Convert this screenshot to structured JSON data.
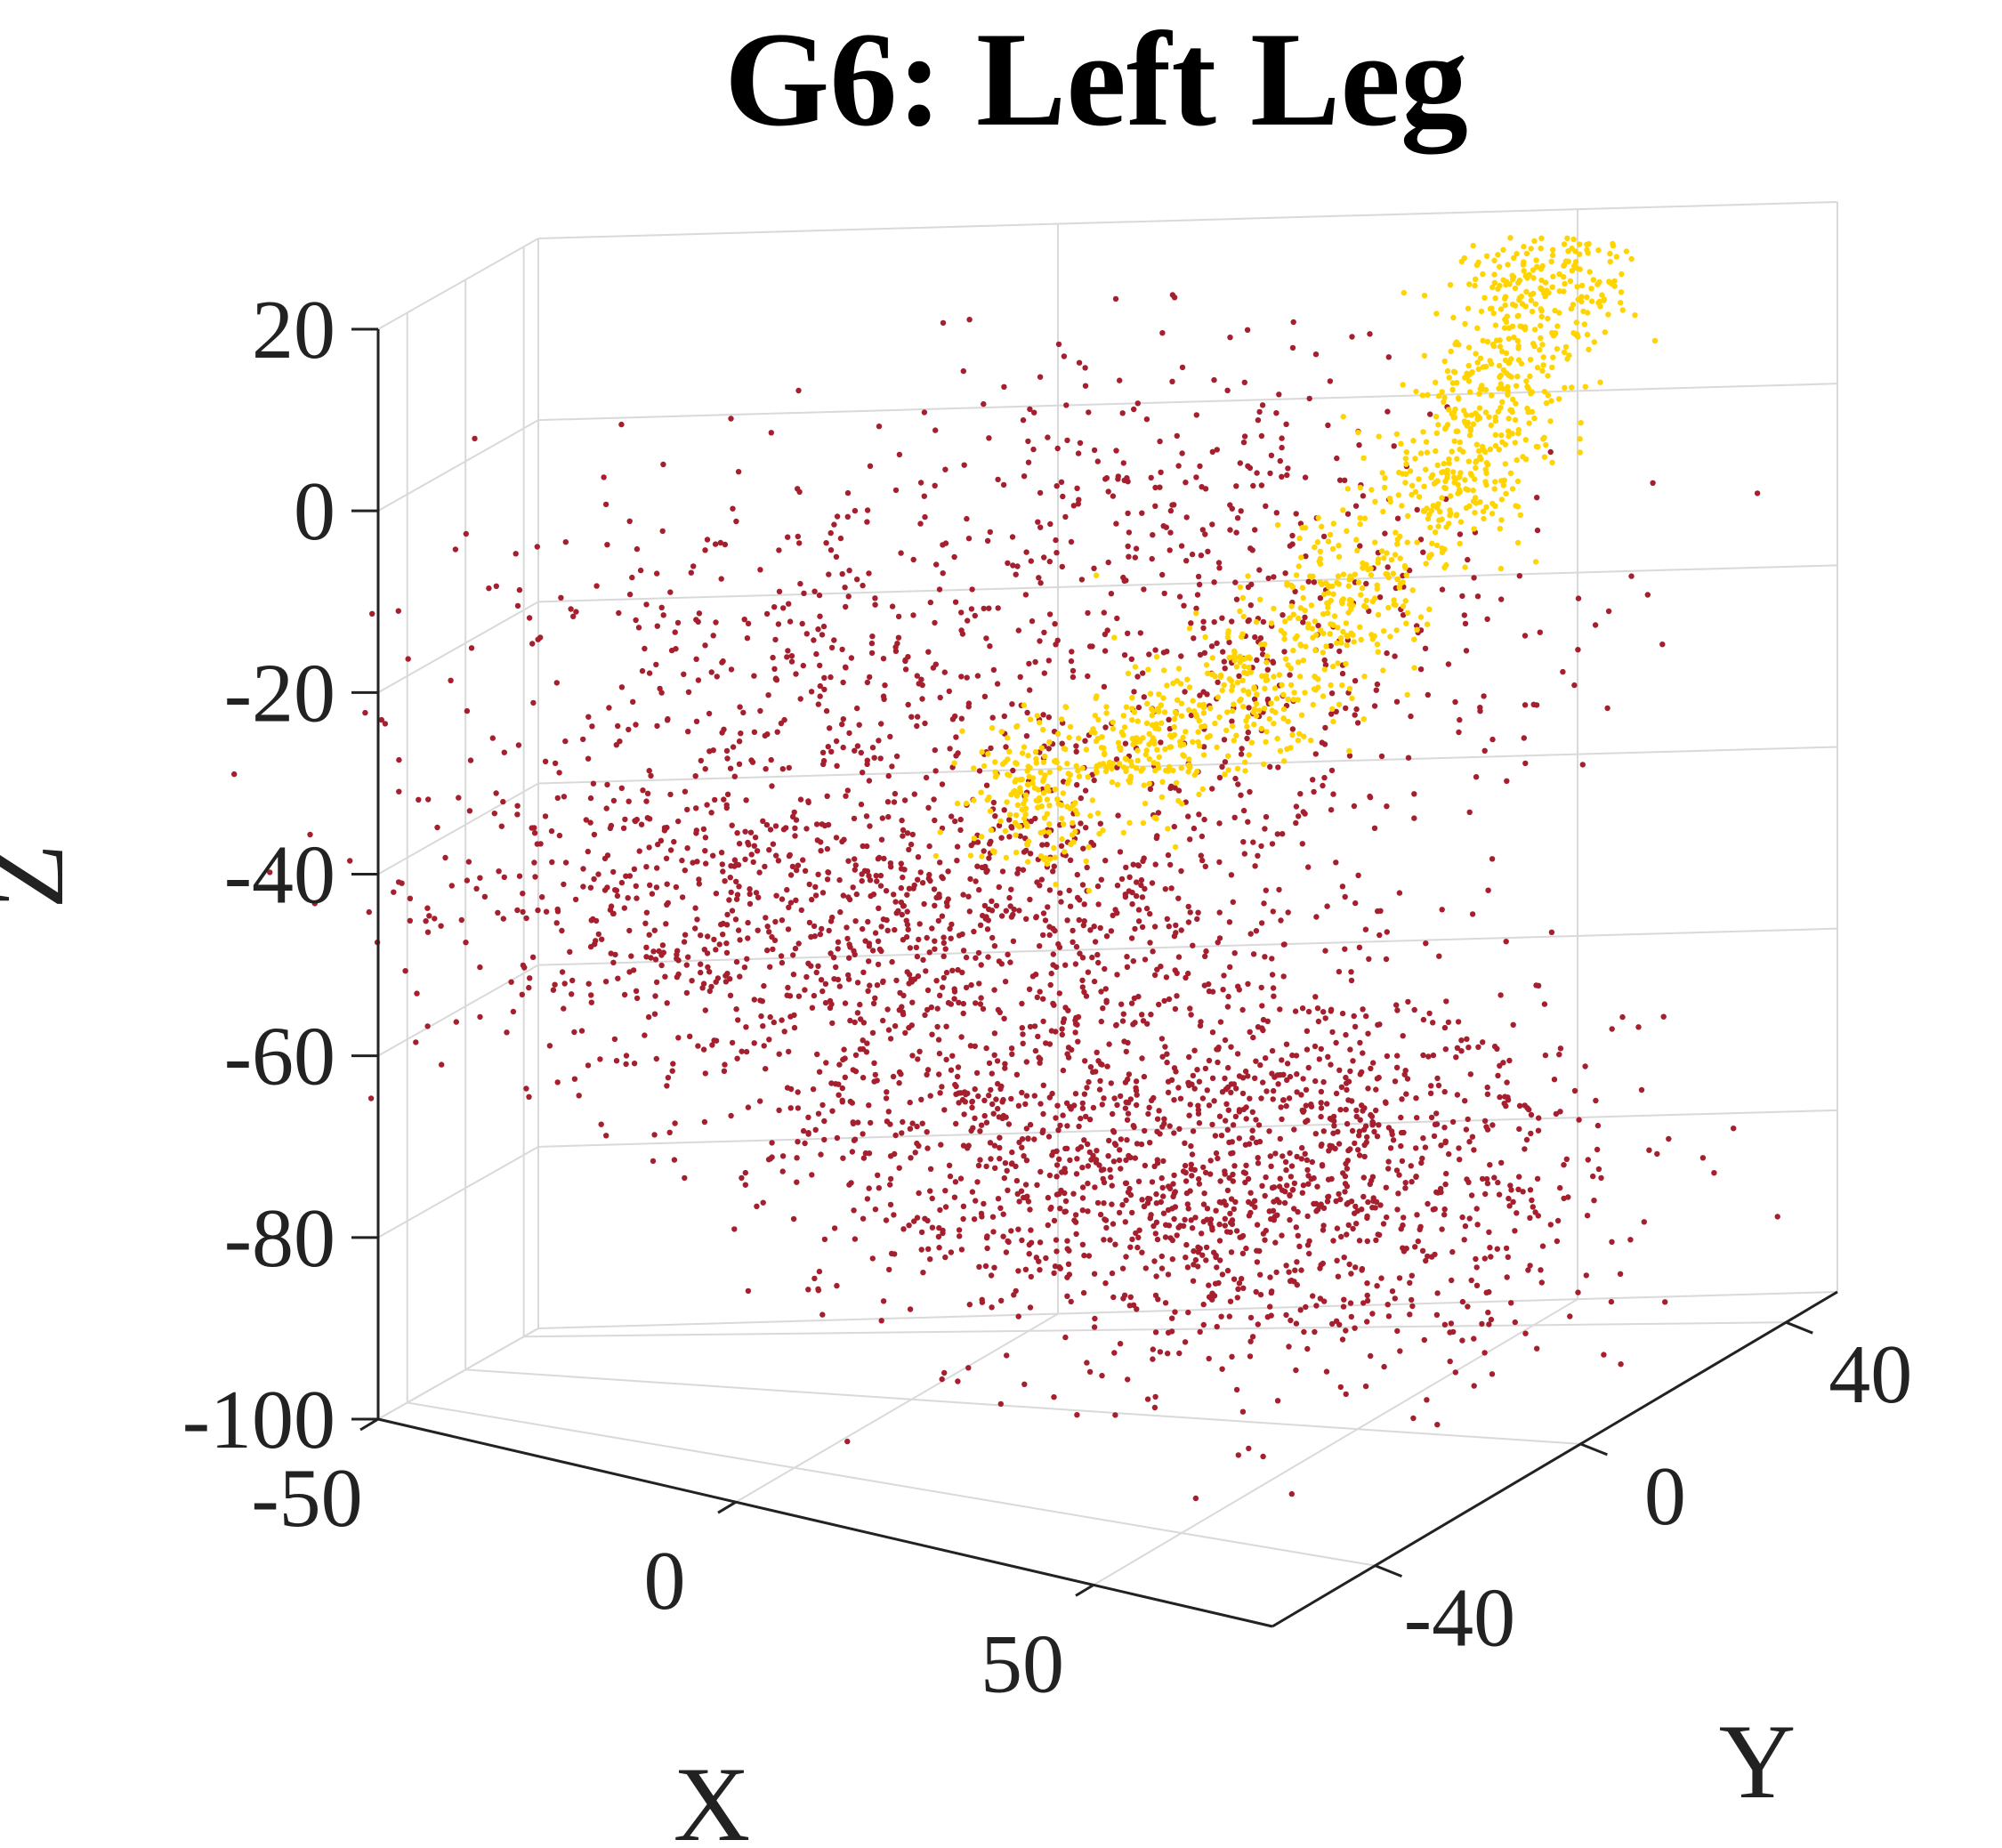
{
  "chart_data": {
    "type": "scatter",
    "title": "G6: Left Leg",
    "xlabel": "X",
    "ylabel": "Y",
    "zlabel": "Z",
    "xlim": [
      -50,
      75
    ],
    "ylim": [
      -60,
      50
    ],
    "zlim": [
      -100,
      20
    ],
    "x_ticks": [
      "-50",
      "0",
      "50"
    ],
    "y_ticks": [
      "-40",
      "0",
      "40"
    ],
    "z_ticks": [
      "20",
      "0",
      "-20",
      "-40",
      "-60",
      "-80",
      "-100"
    ],
    "grid": true,
    "legend": "none",
    "series": [
      {
        "color": "#a51f2e",
        "description_points": "dense scatter of thousands of points, concentrated near the bottom of a spherical cap",
        "cluster_points": [
          [
            10,
            20,
            -75
          ],
          [
            30,
            10,
            -78
          ],
          [
            50,
            0,
            -80
          ],
          [
            -10,
            30,
            -65
          ],
          [
            20,
            -20,
            -70
          ],
          [
            60,
            -20,
            -65
          ],
          [
            0,
            0,
            -40
          ],
          [
            30,
            30,
            -25
          ],
          [
            -20,
            10,
            -20
          ],
          [
            40,
            -30,
            -30
          ],
          [
            10,
            40,
            -10
          ],
          [
            -30,
            -10,
            -45
          ],
          [
            65,
            -40,
            -50
          ],
          [
            -20,
            40,
            -55
          ]
        ]
      },
      {
        "color": "#ffd400",
        "description_points": "curved band of points forming an arc in the upper region",
        "cluster_points": [
          [
            10,
            10,
            -35
          ],
          [
            20,
            15,
            -30
          ],
          [
            30,
            20,
            -25
          ],
          [
            38,
            25,
            -15
          ],
          [
            45,
            30,
            -5
          ],
          [
            50,
            32,
            5
          ],
          [
            52,
            35,
            15
          ],
          [
            55,
            36,
            22
          ]
        ]
      }
    ]
  }
}
